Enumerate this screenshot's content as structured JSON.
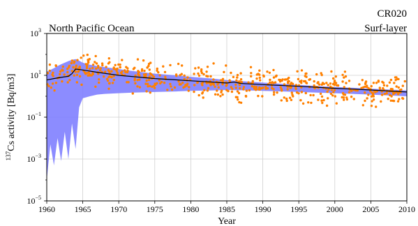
{
  "chart_data": {
    "type": "scatter",
    "region_label": "North Pacific Ocean",
    "id_label": "CR020",
    "layer_label": "Surf-layer",
    "xlabel": "Year",
    "ylabel_sup": "137",
    "ylabel_main": "Cs activity [Bq/m3]",
    "xlim": [
      1960,
      2010
    ],
    "ylim": [
      1e-05,
      1000
    ],
    "yscale": "log",
    "grid": true,
    "x_ticks": [
      1960,
      1965,
      1970,
      1975,
      1980,
      1985,
      1990,
      1995,
      2000,
      2005,
      2010
    ],
    "x_tick_labels": [
      "1960",
      "1965",
      "1970",
      "1975",
      "1980",
      "1985",
      "1990",
      "1995",
      "2000",
      "2005",
      "2010"
    ],
    "y_ticks": [
      1e-05,
      0.001,
      0.1,
      10,
      1000
    ],
    "y_tick_bases": [
      "10",
      "10",
      "10",
      "10",
      "10"
    ],
    "y_tick_exponents": [
      "−5",
      "−3",
      "−1",
      "1",
      "3"
    ],
    "series": [
      {
        "kind": "band",
        "color": "#8080ff",
        "x": [
          1960.0,
          1960.5,
          1961.0,
          1961.5,
          1962.0,
          1962.5,
          1963.0,
          1963.5,
          1964.0,
          1964.5,
          1965.0,
          1966.0,
          1967.0,
          1968.0,
          1970.0,
          1972.0,
          1975.0,
          1978.0,
          1980.0,
          1983.0,
          1985.0,
          1988.0,
          1990.0,
          1995.0,
          2000.0,
          2005.0,
          2010.0
        ],
        "upper": [
          15,
          18,
          22,
          28,
          34,
          40,
          48,
          55,
          60,
          50,
          40,
          32,
          28,
          25,
          20,
          16,
          12,
          10,
          8.5,
          7,
          6,
          5,
          4.5,
          3.5,
          2.8,
          2.3,
          1.9
        ],
        "lower": [
          0.0001,
          0.005,
          0.0005,
          0.01,
          0.0008,
          0.02,
          0.001,
          0.05,
          0.003,
          0.3,
          0.8,
          1.0,
          1.2,
          1.3,
          1.4,
          1.5,
          1.6,
          1.7,
          1.8,
          1.9,
          2.0,
          1.9,
          1.8,
          1.6,
          1.4,
          1.2,
          1.0
        ]
      },
      {
        "kind": "line",
        "color": "#000000",
        "x": [
          1960,
          1961,
          1962,
          1963,
          1963.5,
          1964,
          1965,
          1967,
          1970,
          1975,
          1980,
          1985,
          1986,
          1987,
          1990,
          1995,
          2000,
          2005,
          2010
        ],
        "y": [
          6,
          7,
          8,
          9,
          12,
          20,
          18,
          14,
          10,
          7,
          5.5,
          4.3,
          4.8,
          4.1,
          3.6,
          3.0,
          2.4,
          2.0,
          1.6
        ]
      },
      {
        "kind": "scatter",
        "color": "#ff8000",
        "trend_x": [
          1960,
          1962,
          1964,
          1965,
          1967,
          1970,
          1975,
          1980,
          1985,
          1990,
          1995,
          2000,
          2005,
          2010
        ],
        "trend_y": [
          8,
          12,
          20,
          22,
          16,
          11,
          7.5,
          5.5,
          4.2,
          3.5,
          2.9,
          2.4,
          2.0,
          1.6
        ],
        "point_count": 620,
        "spread_decades": 0.35
      }
    ]
  }
}
